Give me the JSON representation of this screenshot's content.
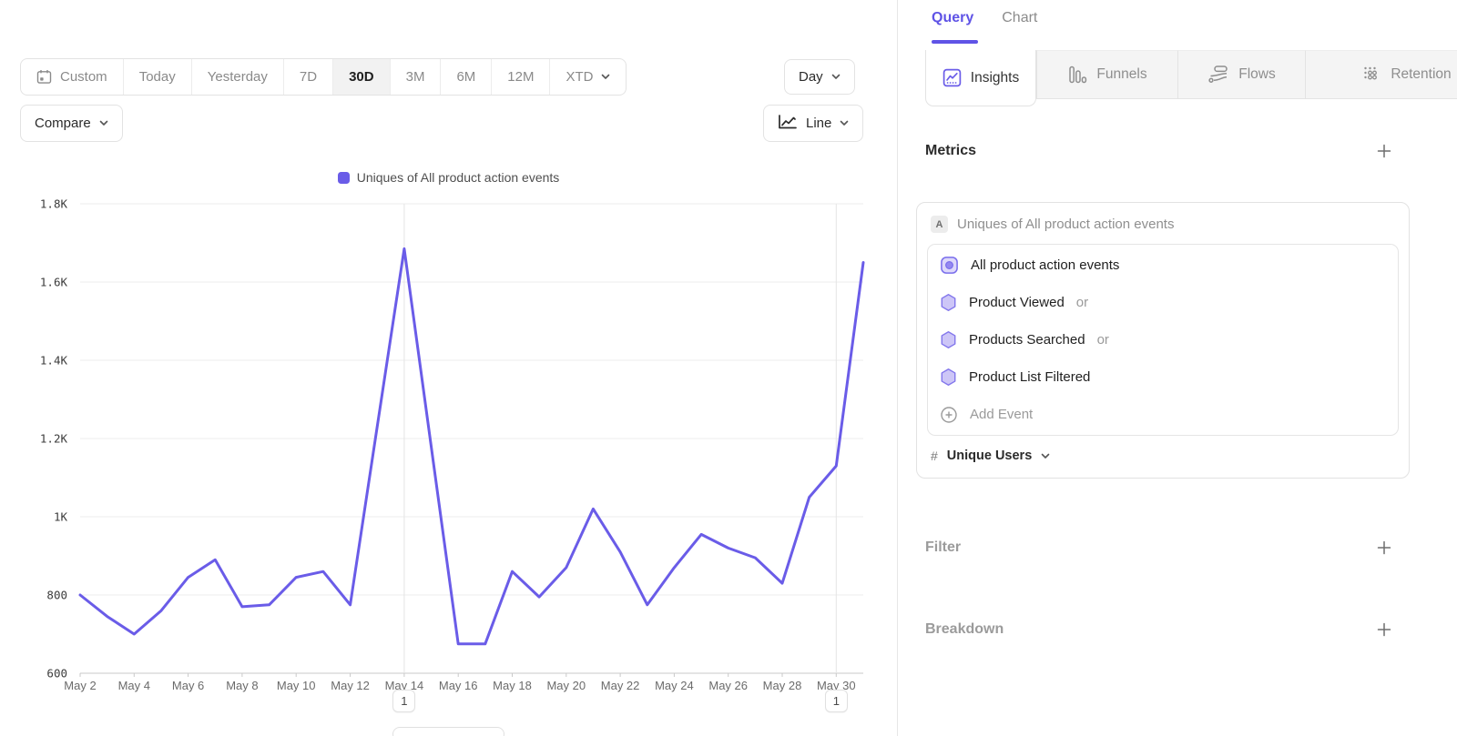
{
  "colors": {
    "accent": "#5F53E6",
    "line": "#6A5CE8",
    "hex_fill": "#CDC6F7",
    "hex_stroke": "#8377EC"
  },
  "toolbar": {
    "date_ranges": [
      {
        "label": "Custom",
        "icon": "calendar-icon"
      },
      {
        "label": "Today"
      },
      {
        "label": "Yesterday"
      },
      {
        "label": "7D"
      },
      {
        "label": "30D",
        "selected": true
      },
      {
        "label": "3M"
      },
      {
        "label": "6M"
      },
      {
        "label": "12M"
      },
      {
        "label": "XTD",
        "chevron": true
      }
    ],
    "compare_label": "Compare",
    "granularity_label": "Day",
    "chart_type_label": "Line"
  },
  "chart_data": {
    "type": "line",
    "title": "Uniques of All product action events",
    "legend": [
      {
        "label": "Uniques of All product action events",
        "color": "#6A5CE8"
      }
    ],
    "legend_position": "top-center",
    "grid": true,
    "categories": [
      "May 2",
      "May 3",
      "May 4",
      "May 5",
      "May 6",
      "May 7",
      "May 8",
      "May 9",
      "May 10",
      "May 11",
      "May 12",
      "May 13",
      "May 14",
      "May 15",
      "May 16",
      "May 17",
      "May 18",
      "May 19",
      "May 20",
      "May 21",
      "May 22",
      "May 23",
      "May 24",
      "May 25",
      "May 26",
      "May 27",
      "May 28",
      "May 29",
      "May 30",
      "May 31"
    ],
    "series": [
      {
        "name": "Uniques of All product action events",
        "color": "#6A5CE8",
        "values": [
          800,
          745,
          700,
          760,
          845,
          890,
          770,
          775,
          845,
          860,
          775,
          1230,
          1685,
          1180,
          675,
          675,
          860,
          795,
          870,
          1020,
          910,
          775,
          870,
          955,
          920,
          895,
          830,
          1050,
          1130,
          1650
        ]
      }
    ],
    "ylim": [
      600,
      1800
    ],
    "y_ticks": [
      {
        "value": 600,
        "label": "600"
      },
      {
        "value": 800,
        "label": "800"
      },
      {
        "value": 1000,
        "label": "1K"
      },
      {
        "value": 1200,
        "label": "1.2K"
      },
      {
        "value": 1400,
        "label": "1.4K"
      },
      {
        "value": 1600,
        "label": "1.6K"
      },
      {
        "value": 1800,
        "label": "1.8K"
      }
    ],
    "x_tick_every": 2,
    "annotations": [
      {
        "label": "1",
        "category": "May 14"
      },
      {
        "label": "1",
        "category": "May 30"
      }
    ]
  },
  "query_panel": {
    "header_tabs": [
      {
        "label": "Query",
        "active": true
      },
      {
        "label": "Chart",
        "active": false
      }
    ],
    "report_tabs": [
      {
        "label": "Insights",
        "icon": "insights-icon",
        "active": true
      },
      {
        "label": "Funnels",
        "icon": "funnels-icon",
        "active": false
      },
      {
        "label": "Flows",
        "icon": "flows-icon",
        "active": false
      },
      {
        "label": "Retention",
        "icon": "retention-icon",
        "active": false
      }
    ],
    "metrics": {
      "heading": "Metrics",
      "add_label": "+",
      "card": {
        "badge": "A",
        "title": "Uniques of All product action events",
        "events": [
          {
            "label": "All product action events",
            "icon": "event-group-icon",
            "suffix": "",
            "muted": false
          },
          {
            "label": "Product Viewed",
            "icon": "hexagon-icon",
            "suffix": "or",
            "muted": false
          },
          {
            "label": "Products Searched",
            "icon": "hexagon-icon",
            "suffix": "or",
            "muted": false
          },
          {
            "label": "Product List Filtered",
            "icon": "hexagon-icon",
            "suffix": "",
            "muted": false
          },
          {
            "label": "Add Event",
            "icon": "add-circle-icon",
            "suffix": "",
            "muted": true
          }
        ],
        "measurement": {
          "prefix": "#",
          "label": "Unique Users"
        }
      }
    },
    "filter": {
      "heading": "Filter",
      "add_label": "+"
    },
    "breakdown": {
      "heading": "Breakdown",
      "add_label": "+"
    }
  }
}
